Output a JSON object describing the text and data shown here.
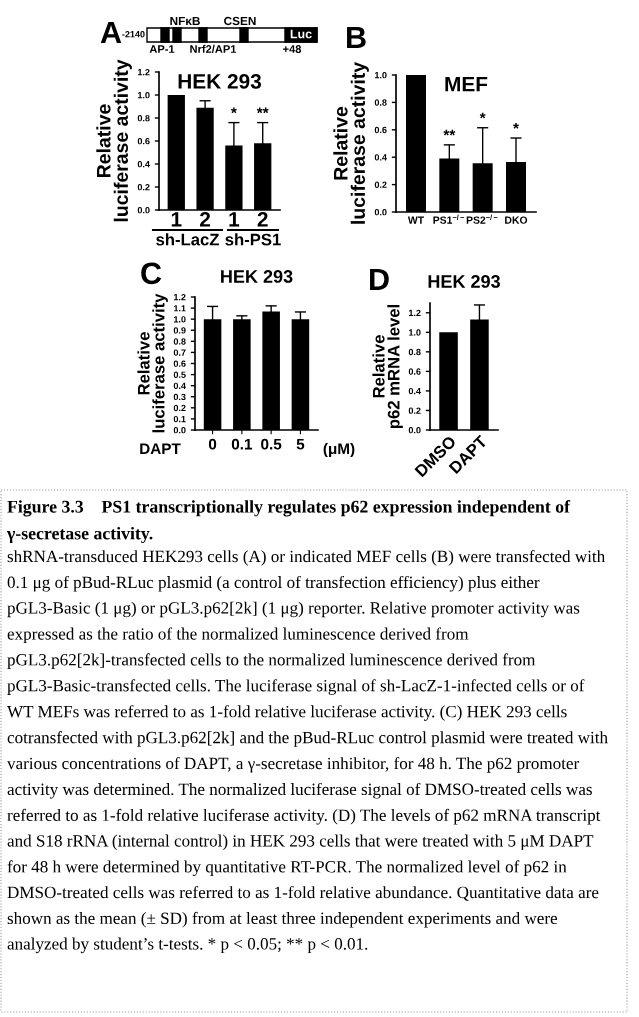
{
  "chart_data": [
    {
      "type": "other",
      "annotations": [
        "-2140",
        "NFκB",
        "CSEN",
        "AP-1",
        "Nrf2/AP1",
        "+48",
        "Luc"
      ]
    },
    {
      "type": "bar",
      "title": "HEK 293",
      "ylabel": "Relative\nluciferase activity",
      "categories": [
        "1",
        "2",
        "1",
        "2"
      ],
      "values": [
        1.0,
        0.89,
        0.56,
        0.58
      ],
      "errors": [
        null,
        0.06,
        0.2,
        0.18
      ],
      "color": "#000000",
      "ylim": [
        0,
        1.2
      ],
      "yticks": [
        {
          "value": 0,
          "label": "0.0"
        },
        {
          "value": 0.2,
          "label": "0.2"
        },
        {
          "value": 0.4,
          "label": "0.4"
        },
        {
          "value": 0.6,
          "label": "0.6"
        },
        {
          "value": 0.8,
          "label": "0.8"
        },
        {
          "value": 1.0,
          "label": "1.0"
        },
        {
          "value": 1.2,
          "label": "1.2"
        }
      ],
      "grid": false,
      "annotations": [
        "A",
        "*",
        "**",
        "sh-LacZ",
        "sh-PS1"
      ]
    },
    {
      "type": "bar",
      "title": "MEF",
      "ylabel": "Relative\nluciferase activity",
      "categories": [
        "WT",
        "PS1$^{−/−}$",
        "PS2$^{−/−}$",
        "DKO"
      ],
      "values": [
        1.0,
        0.39,
        0.355,
        0.365
      ],
      "errors": [
        null,
        0.1,
        0.26,
        0.175
      ],
      "color": "#000000",
      "ylim": [
        0,
        1.0
      ],
      "yticks": [
        {
          "value": 0,
          "label": "0.0"
        },
        {
          "value": 0.2,
          "label": "0.2"
        },
        {
          "value": 0.4,
          "label": "0.4"
        },
        {
          "value": 0.6,
          "label": "0.6"
        },
        {
          "value": 0.8,
          "label": "0.8"
        },
        {
          "value": 1.0,
          "label": "1.0"
        }
      ],
      "grid": false,
      "annotations": [
        "B",
        "**",
        "*",
        "*"
      ]
    },
    {
      "type": "bar",
      "title": "HEK 293",
      "ylabel": "Relative\nluciferase activity",
      "categories": [
        "0",
        "0.1",
        "0.5",
        "5"
      ],
      "values": [
        1.0,
        1.0,
        1.07,
        1.0
      ],
      "errors": [
        0.115,
        0.03,
        0.05,
        0.065
      ],
      "color": "#000000",
      "ylim": [
        0,
        1.2
      ],
      "yticks": [
        {
          "value": 0,
          "label": "0.0"
        },
        {
          "value": 0.1,
          "label": "0.1"
        },
        {
          "value": 0.2,
          "label": "0.2"
        },
        {
          "value": 0.3,
          "label": "0.3"
        },
        {
          "value": 0.4,
          "label": "0.4"
        },
        {
          "value": 0.5,
          "label": "0.5"
        },
        {
          "value": 0.6,
          "label": "0.6"
        },
        {
          "value": 0.7,
          "label": "0.7"
        },
        {
          "value": 0.8,
          "label": "0.8"
        },
        {
          "value": 0.9,
          "label": "0.9"
        },
        {
          "value": 1.0,
          "label": "1.0"
        },
        {
          "value": 1.1,
          "label": "1.1"
        },
        {
          "value": 1.2,
          "label": "1.2"
        }
      ],
      "grid": false,
      "annotations": [
        "C",
        "DAPT",
        "(μM)"
      ]
    },
    {
      "type": "bar",
      "title": "HEK 293",
      "ylabel": "Relative\np62 mRNA level",
      "categories": [
        "DMSO",
        "DAPT"
      ],
      "values": [
        1.0,
        1.13
      ],
      "errors": [
        null,
        0.15
      ],
      "color": "#000000",
      "ylim": [
        0,
        1.3
      ],
      "yticks": [
        {
          "value": 0,
          "label": "0.0"
        },
        {
          "value": 0.2,
          "label": "0.2"
        },
        {
          "value": 0.4,
          "label": "0.4"
        },
        {
          "value": 0.6,
          "label": "0.6"
        },
        {
          "value": 0.8,
          "label": "0.8"
        },
        {
          "value": 1.0,
          "label": "1.0"
        },
        {
          "value": 1.2,
          "label": "1.2"
        }
      ],
      "grid": false,
      "annotations": [
        "D"
      ]
    },
    {
      "type": "other",
      "title": "Figure 3.3    PS1 transcriptionally regulates p62 expression independent of γ-secretase activity.",
      "annotations": [
        "shRNA-transduced HEK293 cells (A) or indicated MEF cells (B) were transfected with 0.1 μg of pBud-RLuc plasmid (a control of transfection efficiency) plus either pGL3-Basic (1 μg) or pGL3.p62[2k] (1 μg) reporter. Relative promoter activity was expressed as the ratio of the normalized luminescence derived from pGL3.p62[2k]-transfected cells to the normalized luminescence derived from pGL3-Basic-transfected cells. The luciferase signal of sh-LacZ-1-infected cells or of WT MEFs was referred to as 1-fold relative luciferase activity. (C) HEK 293 cells cotransfected with pGL3.p62[2k] and the pBud-RLuc control plasmid were treated with various concentrations of DAPT, a γ-secretase inhibitor, for 48 h. The p62 promoter activity was determined. The normalized luciferase signal of DMSO-treated cells was referred to as 1-fold relative luciferase activity. (D) The levels of p62 mRNA transcript and S18 rRNA (internal control) in HEK 293 cells that were treated with 5 μM DAPT for 48 h were determined by quantitative RT-PCR. The normalized level of p62 in DMSO-treated cells was referred to as 1-fold relative abundance. Quantitative data are shown as the mean (± SD) from at least three independent experiments and were analyzed by student’s t-tests. * p < 0.05; ** p < 0.01."
      ]
    }
  ]
}
